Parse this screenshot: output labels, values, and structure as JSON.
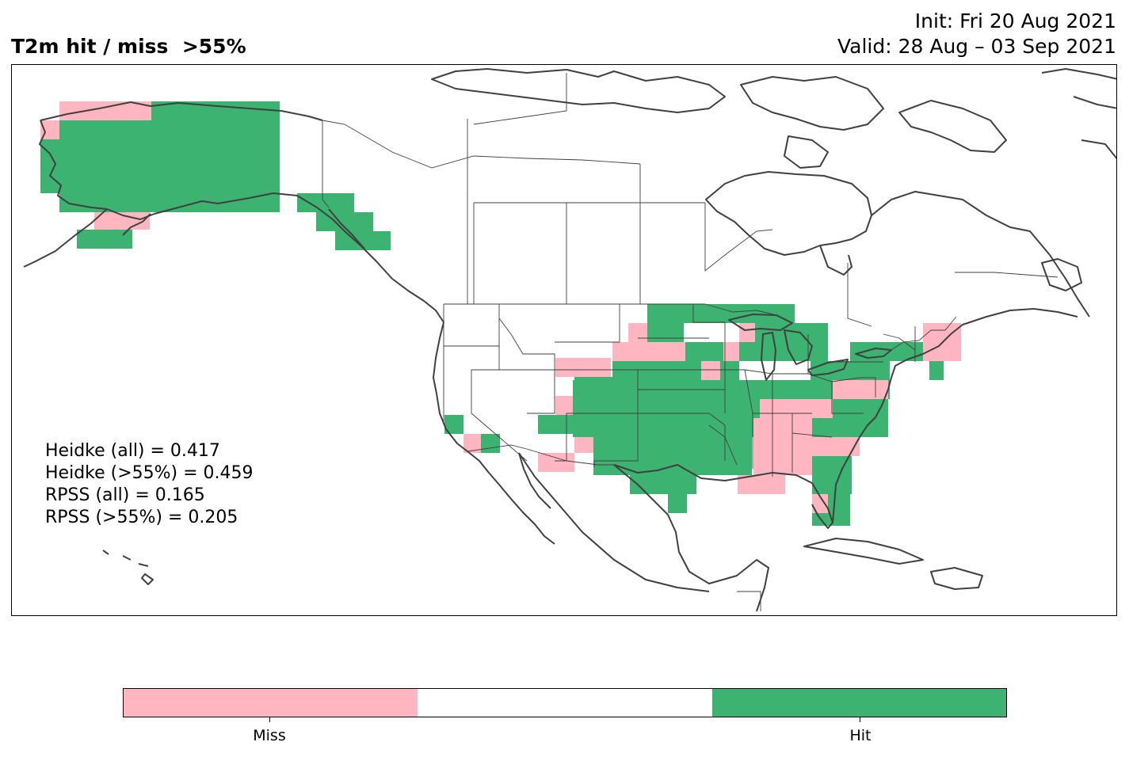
{
  "title": "T2m hit / miss  >55%",
  "init": "Init: Fri 20 Aug 2021",
  "valid": "Valid: 28 Aug – 03 Sep 2021",
  "stats": [
    "Heidke (all) = 0.417",
    "Heidke (>55%) = 0.459",
    "RPSS (all) = 0.165",
    "RPSS (>55%) = 0.205"
  ],
  "colors": {
    "miss": "#ffb6c1",
    "neutral": "#ffffff",
    "hit": "#3cb371",
    "coast": "#404040"
  },
  "colorbar": {
    "labels": [
      "Miss",
      "Hit"
    ]
  }
}
